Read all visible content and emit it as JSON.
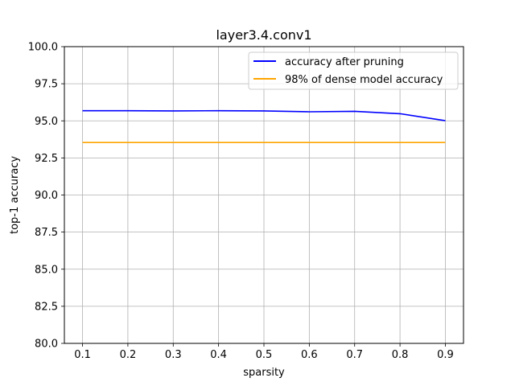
{
  "chart_data": {
    "type": "line",
    "title": "layer3.4.conv1",
    "xlabel": "sparsity",
    "ylabel": "top-1 accuracy",
    "x": [
      0.1,
      0.2,
      0.3,
      0.4,
      0.5,
      0.6,
      0.7,
      0.8,
      0.9
    ],
    "x_ticks": [
      "0.1",
      "0.2",
      "0.3",
      "0.4",
      "0.5",
      "0.6",
      "0.7",
      "0.8",
      "0.9"
    ],
    "y_ticks": [
      "80.0",
      "82.5",
      "85.0",
      "87.5",
      "90.0",
      "92.5",
      "95.0",
      "97.5",
      "100.0"
    ],
    "xlim": [
      0.06,
      0.94
    ],
    "ylim": [
      80.0,
      100.0
    ],
    "grid": true,
    "legend_position": "top-right",
    "series": [
      {
        "name": "accuracy after pruning",
        "color": "#0000ff",
        "values": [
          95.68,
          95.68,
          95.67,
          95.68,
          95.67,
          95.61,
          95.64,
          95.48,
          95.01
        ]
      },
      {
        "name": "98% of dense model accuracy",
        "color": "#ffa500",
        "values": [
          93.54,
          93.54,
          93.54,
          93.54,
          93.54,
          93.54,
          93.54,
          93.54,
          93.54
        ]
      }
    ]
  }
}
